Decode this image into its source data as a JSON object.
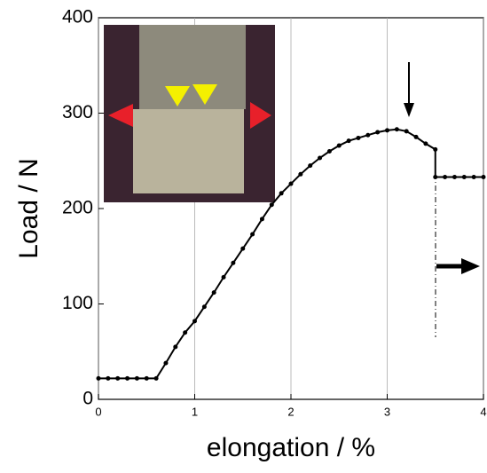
{
  "chart_data": {
    "type": "line",
    "x_label": "elongation / %",
    "y_label": "Load  / N",
    "xlim": [
      0,
      4
    ],
    "xticks": [
      0,
      1,
      2,
      3,
      4
    ],
    "ylim": [
      0,
      400
    ],
    "yticks": [
      0,
      100,
      200,
      300,
      400
    ],
    "grid": true,
    "series": [
      {
        "color": "#000000",
        "x": [
          0,
          0.1,
          0.2,
          0.3,
          0.4,
          0.5,
          0.6,
          0.7,
          0.8,
          0.9,
          1.0,
          1.1,
          1.2,
          1.3,
          1.4,
          1.5,
          1.6,
          1.7,
          1.8,
          1.9,
          2.0,
          2.1,
          2.2,
          2.3,
          2.4,
          2.5,
          2.6,
          2.7,
          2.8,
          2.9,
          3.0,
          3.1,
          3.2,
          3.3,
          3.4,
          3.5,
          3.5,
          3.6,
          3.7,
          3.8,
          3.9,
          4.0
        ],
        "values": [
          22,
          22,
          22,
          22,
          22,
          22,
          22,
          38,
          55,
          70,
          82,
          97,
          112,
          128,
          143,
          158,
          173,
          189,
          204,
          216,
          226,
          236,
          245,
          253,
          260,
          266,
          271,
          274,
          277,
          280,
          282,
          283,
          281,
          275,
          268,
          262,
          233,
          233,
          233,
          233,
          233,
          233
        ]
      }
    ]
  }
}
